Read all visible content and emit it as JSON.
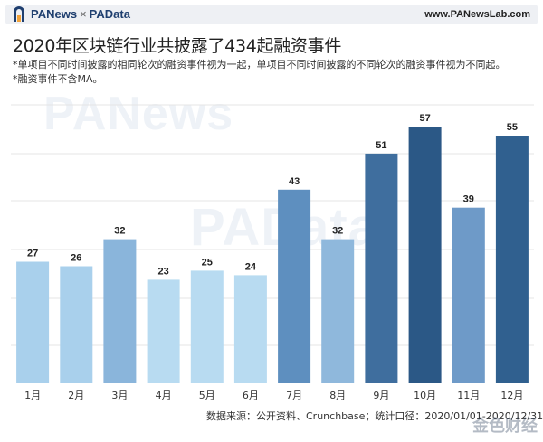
{
  "header": {
    "brand_left": "PANews",
    "brand_sep": "×",
    "brand_right": "PAData",
    "site": "www.PANewsLab.com"
  },
  "title": "2020年区块链行业共披露了434起融资事件",
  "notes": [
    "*单项目不同时间披露的相同轮次的融资事件视为一起，单项目不同时间披露的不同轮次的融资事件视为不同起。",
    "*融资事件不含MA。"
  ],
  "watermarks": [
    "PANews",
    "PAData"
  ],
  "source": "数据来源：公开资料、Crunchbase；统计口径：2020/01/01-2020/12/31",
  "corner_logo": "金色财经",
  "colors": {
    "light": "#b3d6ef",
    "mid_light": "#8fb8dc",
    "mid": "#5e8fbf",
    "dark": "#3e6f9f",
    "darkest": "#2b5886"
  },
  "chart_data": {
    "type": "bar",
    "categories": [
      "1月",
      "2月",
      "3月",
      "4月",
      "5月",
      "6月",
      "7月",
      "8月",
      "9月",
      "10月",
      "11月",
      "12月"
    ],
    "values": [
      27,
      26,
      32,
      23,
      25,
      24,
      43,
      32,
      51,
      57,
      39,
      55
    ],
    "bar_colors": [
      "#a9d0ec",
      "#a9d0ec",
      "#8ab5db",
      "#b8dbf1",
      "#b8dbf1",
      "#b8dbf1",
      "#5e8fbf",
      "#8fb8dc",
      "#3f6e9e",
      "#2b5886",
      "#6e9ac8",
      "#30608f"
    ],
    "ylim": [
      0,
      60
    ],
    "grid": true,
    "title": "2020年区块链行业共披露了434起融资事件",
    "xlabel": "",
    "ylabel": ""
  }
}
